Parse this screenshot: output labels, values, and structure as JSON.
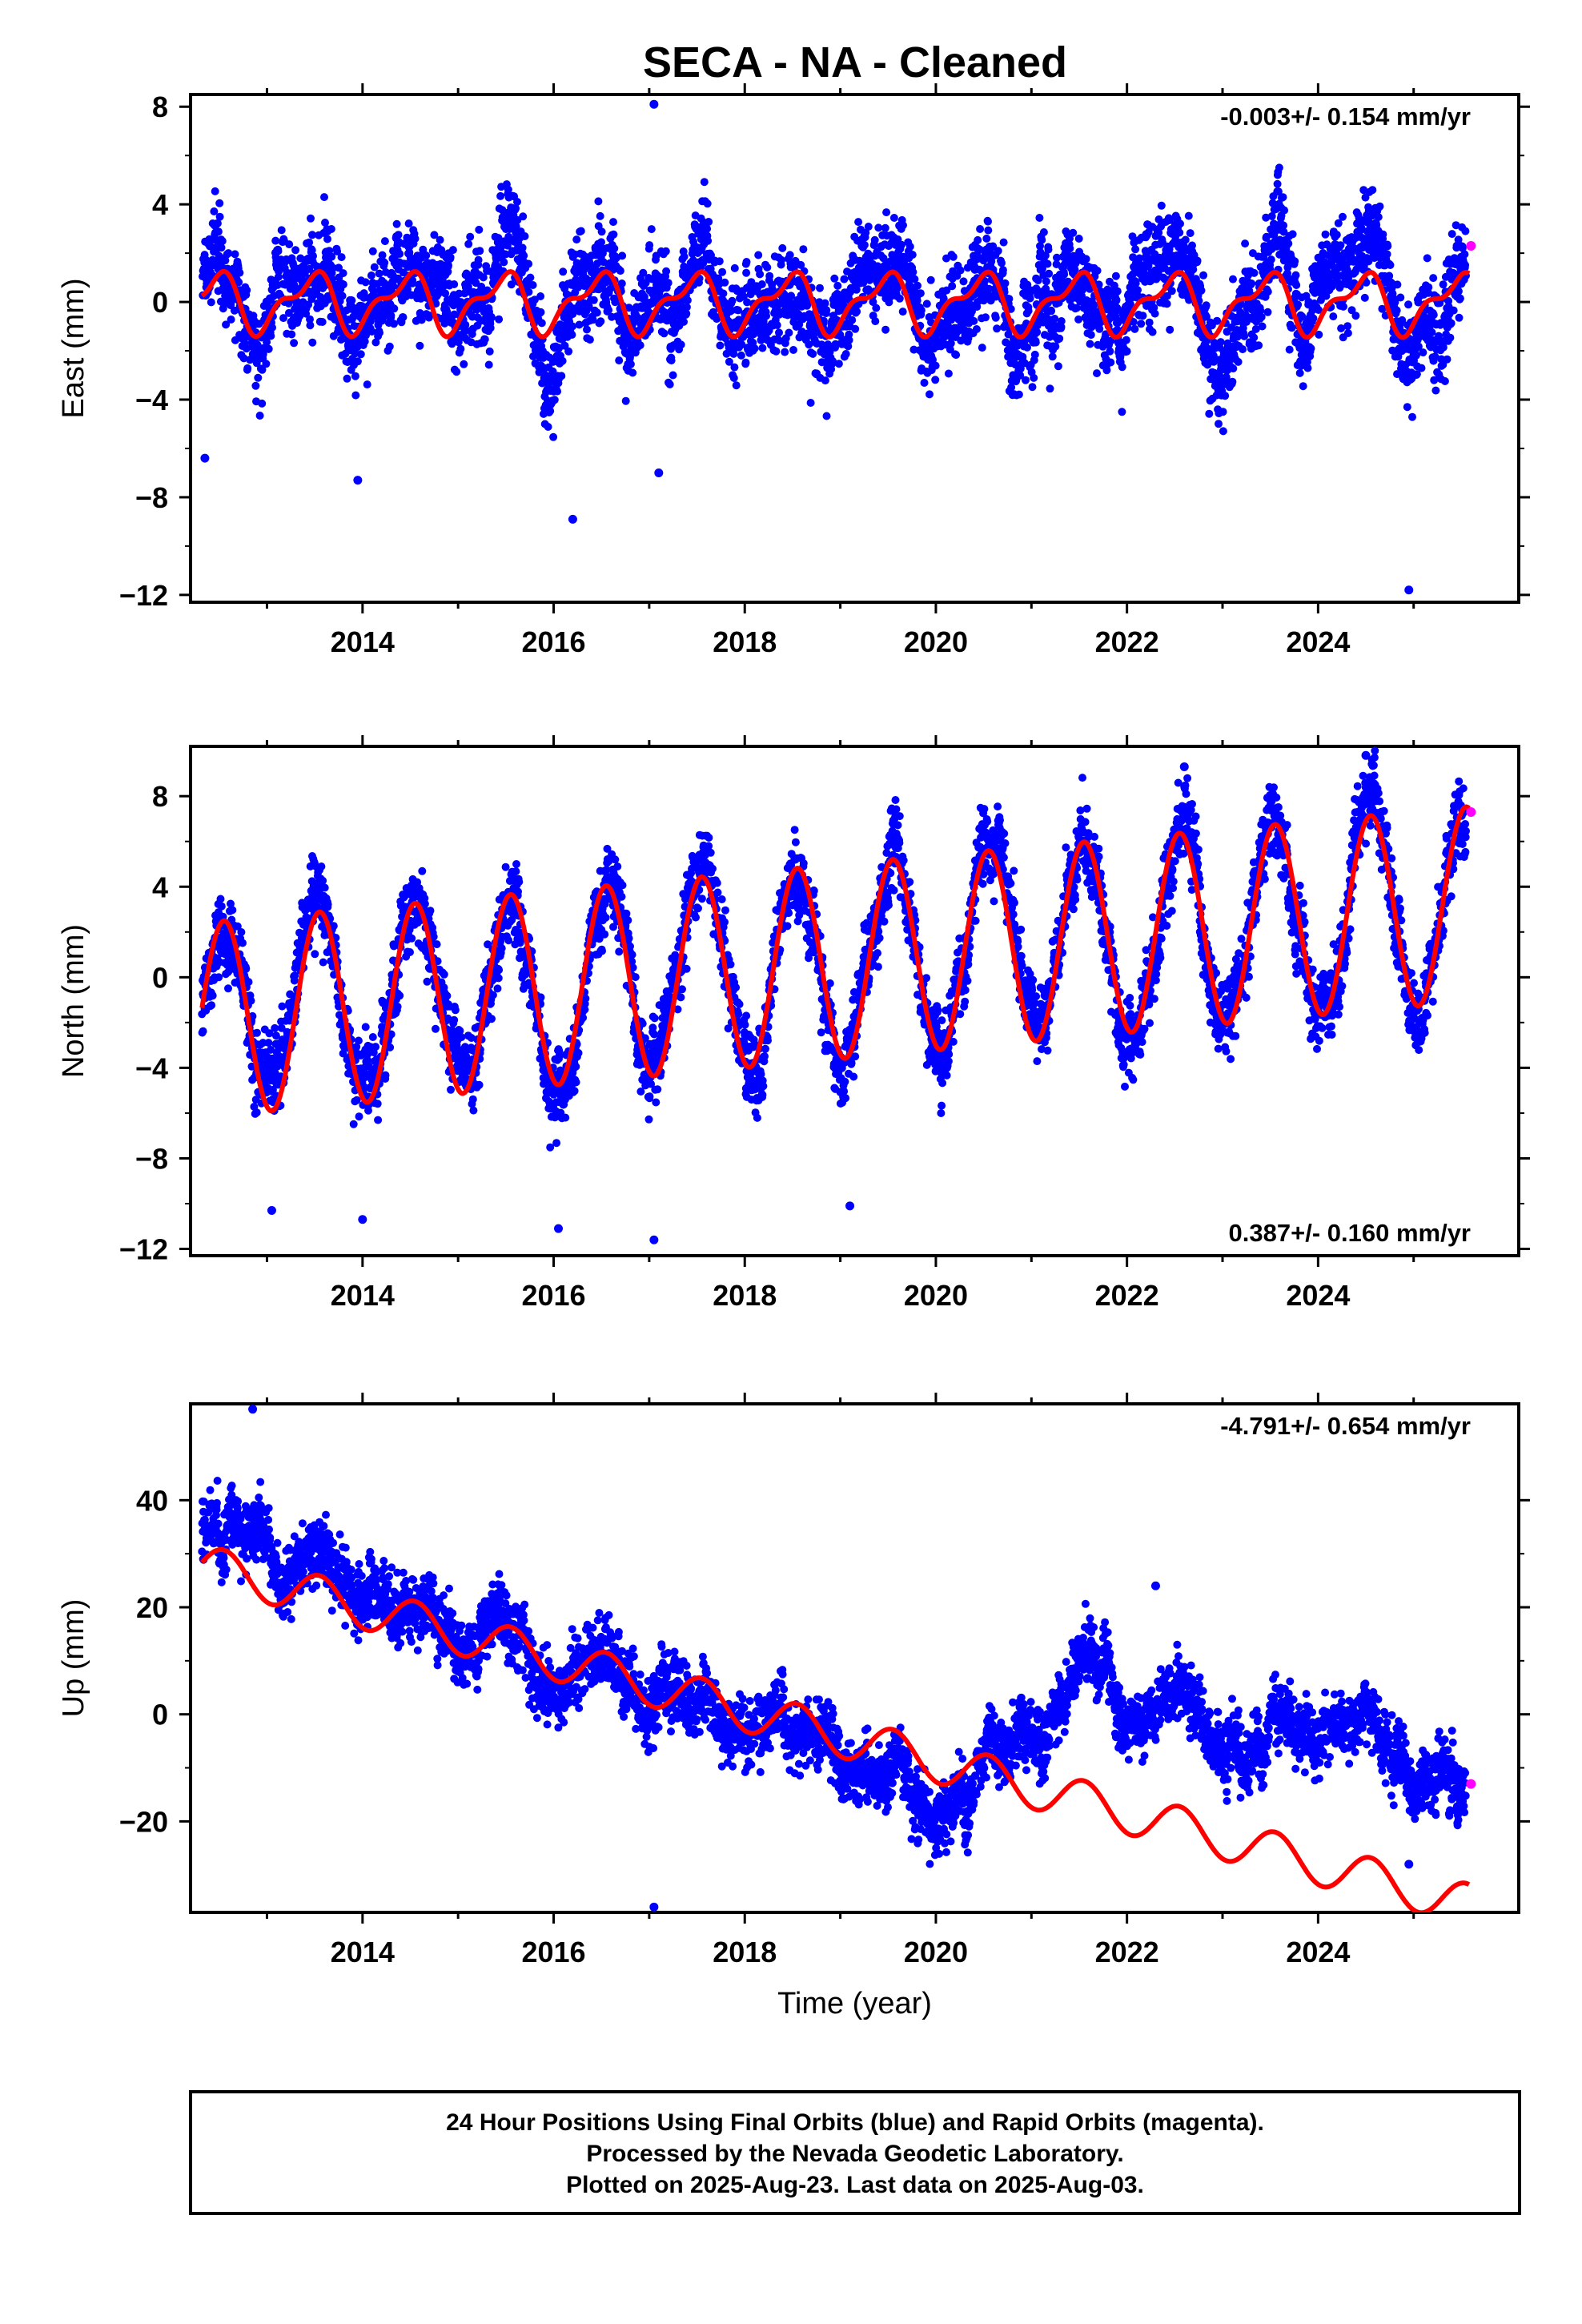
{
  "title": "SECA  - NA - Cleaned",
  "colors": {
    "final_orbits": "#0000ff",
    "rapid_orbits": "#ff00ff",
    "model": "#ff0000"
  },
  "chart_data": [
    {
      "type": "scatter",
      "ylabel": "East (mm)",
      "rate_label": "-0.003+/- 0.154 mm/yr",
      "xlim": [
        2012.2,
        2026.1
      ],
      "ylim": [
        -12.3,
        8.5
      ],
      "yticks": [
        8,
        4,
        0,
        -4,
        -8,
        -12
      ],
      "xticks": [
        2014,
        2016,
        2018,
        2020,
        2022,
        2024
      ],
      "model": {
        "offset": 0,
        "rate": -0.003,
        "seasonal": [
          {
            "period": 1,
            "amplitude": 1.05,
            "phase": 2013.45
          },
          {
            "period": 0.5,
            "amplitude": 0.5,
            "phase": 2013.6
          }
        ]
      },
      "scatter": {
        "sigma": 1.3,
        "amplitude": 1.6
      },
      "outliers": [
        {
          "x": 2017.05,
          "y": 8.1
        },
        {
          "x": 2016.2,
          "y": -8.9
        },
        {
          "x": 2024.95,
          "y": -11.8
        },
        {
          "x": 2012.35,
          "y": -6.4
        },
        {
          "x": 2013.95,
          "y": -7.3
        },
        {
          "x": 2017.1,
          "y": -7.0
        }
      ],
      "rapid": [
        {
          "x": 2025.6,
          "y": 2.3
        }
      ],
      "series": [
        {
          "name": "Final Orbits (blue)",
          "color": "#0000ff"
        },
        {
          "name": "Rapid Orbits (magenta)",
          "color": "#ff00ff"
        }
      ]
    },
    {
      "type": "scatter",
      "ylabel": "North (mm)",
      "rate_label": "0.387+/- 0.160 mm/yr",
      "xlim": [
        2012.2,
        2026.1
      ],
      "ylim": [
        -12.3,
        10.2
      ],
      "yticks": [
        8,
        4,
        0,
        -4,
        -8,
        -12
      ],
      "xticks": [
        2014,
        2016,
        2018,
        2020,
        2022,
        2024
      ],
      "model": {
        "offset": -1.9,
        "rate": 0.387,
        "seasonal": [
          {
            "period": 1,
            "amplitude": 4.3,
            "phase": 2012.55
          }
        ]
      },
      "scatter": {
        "sigma": 1.1,
        "amplitude": 1.2
      },
      "outliers": [
        {
          "x": 2013.05,
          "y": -10.3
        },
        {
          "x": 2014.0,
          "y": -10.7
        },
        {
          "x": 2016.05,
          "y": -11.1
        },
        {
          "x": 2017.05,
          "y": -11.6
        },
        {
          "x": 2019.1,
          "y": -10.1
        },
        {
          "x": 2024.5,
          "y": 9.8
        },
        {
          "x": 2022.6,
          "y": 9.3
        }
      ],
      "rapid": [
        {
          "x": 2025.6,
          "y": 7.3
        }
      ],
      "series": [
        {
          "name": "Final Orbits (blue)",
          "color": "#0000ff"
        },
        {
          "name": "Rapid Orbits (magenta)",
          "color": "#ff00ff"
        }
      ]
    },
    {
      "type": "scatter",
      "ylabel": "Up (mm)",
      "rate_label": "-4.791+/- 0.654 mm/yr",
      "xlim": [
        2012.2,
        2026.1
      ],
      "ylim": [
        -37,
        58
      ],
      "yticks": [
        40,
        20,
        0,
        -20
      ],
      "xticks": [
        2014,
        2016,
        2018,
        2020,
        2022,
        2024
      ],
      "xlabel": "Time (year)",
      "model": {
        "offset": 28.0,
        "rate": -4.791,
        "seasonal": [
          {
            "period": 1,
            "amplitude": 3.9,
            "phase": 2012.55
          }
        ]
      },
      "anchors": [
        [
          2012.3,
          32
        ],
        [
          2013.0,
          40
        ],
        [
          2013.2,
          29
        ],
        [
          2014.5,
          18
        ],
        [
          2016.0,
          10
        ],
        [
          2017.5,
          2
        ],
        [
          2018.5,
          -4
        ],
        [
          2019.5,
          -12
        ],
        [
          2020.3,
          -19
        ],
        [
          2020.9,
          -3
        ],
        [
          2021.9,
          2
        ],
        [
          2022.6,
          -2
        ],
        [
          2023.4,
          -6
        ],
        [
          2023.9,
          0
        ],
        [
          2024.4,
          -6
        ],
        [
          2025.0,
          -6
        ],
        [
          2025.6,
          -14
        ]
      ],
      "scatter": {
        "sigma": 4.0,
        "amplitude": 4.5
      },
      "outliers": [
        {
          "x": 2012.85,
          "y": 57
        },
        {
          "x": 2017.05,
          "y": -36
        },
        {
          "x": 2022.3,
          "y": 24
        },
        {
          "x": 2024.95,
          "y": -28
        }
      ],
      "rapid": [
        {
          "x": 2025.6,
          "y": -13
        }
      ],
      "series": [
        {
          "name": "Final Orbits (blue)",
          "color": "#0000ff"
        },
        {
          "name": "Rapid Orbits (magenta)",
          "color": "#ff00ff"
        }
      ]
    }
  ],
  "footer": {
    "line1": "24 Hour Positions Using Final Orbits (blue) and Rapid Orbits (magenta).",
    "line2": "Processed by the Nevada Geodetic Laboratory.",
    "line3": "Plotted on 2025-Aug-23. Last data on 2025-Aug-03."
  }
}
